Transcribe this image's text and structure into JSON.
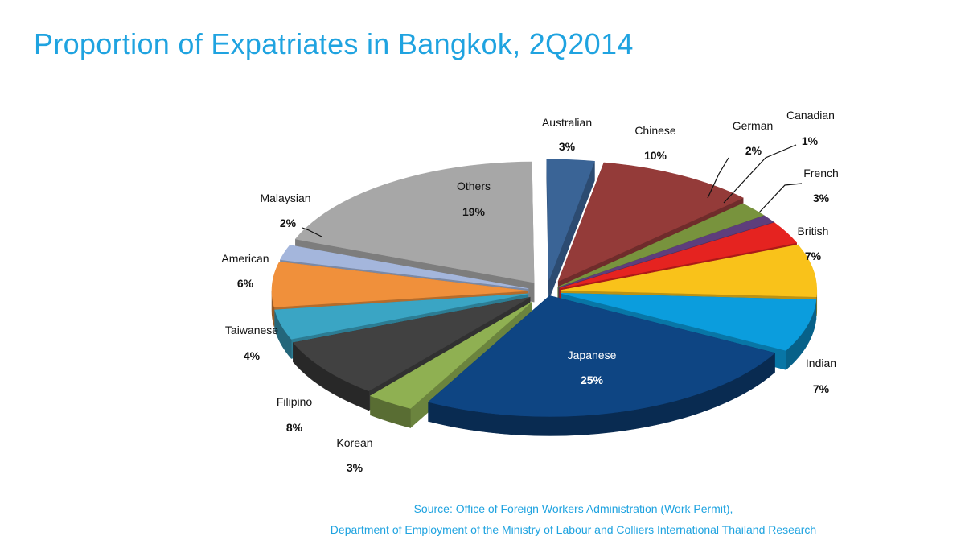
{
  "title": "Proportion of Expatriates in Bangkok, 2Q2014",
  "source": {
    "line1": "Source: Office of Foreign Workers Administration (Work Permit),",
    "line2": "Department of Employment of the Ministry of Labour and Colliers International Thailand Research"
  },
  "chart_data": {
    "type": "pie",
    "style": "3d-exploded",
    "unit": "%",
    "legend": "none",
    "slices": [
      {
        "label": "Australian",
        "value": 3,
        "display": "3%",
        "color": "#3a6496"
      },
      {
        "label": "Chinese",
        "value": 10,
        "display": "10%",
        "color": "#943b39"
      },
      {
        "label": "German",
        "value": 2,
        "display": "2%",
        "color": "#78933d"
      },
      {
        "label": "Canadian",
        "value": 1,
        "display": "1%",
        "color": "#5e3e7c"
      },
      {
        "label": "French",
        "value": 3,
        "display": "3%",
        "color": "#e52320"
      },
      {
        "label": "British",
        "value": 7,
        "display": "7%",
        "color": "#f9c21a"
      },
      {
        "label": "Indian",
        "value": 7,
        "display": "7%",
        "color": "#0b9ddd"
      },
      {
        "label": "Japanese",
        "value": 25,
        "display": "25%",
        "color": "#0e4583"
      },
      {
        "label": "Korean",
        "value": 3,
        "display": "3%",
        "color": "#8fb052"
      },
      {
        "label": "Filipino",
        "value": 8,
        "display": "8%",
        "color": "#414141"
      },
      {
        "label": "Taiwanese",
        "value": 4,
        "display": "4%",
        "color": "#3aa5c4"
      },
      {
        "label": "American",
        "value": 6,
        "display": "6%",
        "color": "#f0903b"
      },
      {
        "label": "Malaysian",
        "value": 2,
        "display": "2%",
        "color": "#a4b6dc"
      },
      {
        "label": "Others",
        "value": 19,
        "display": "19%",
        "color": "#a7a7a7"
      }
    ]
  }
}
